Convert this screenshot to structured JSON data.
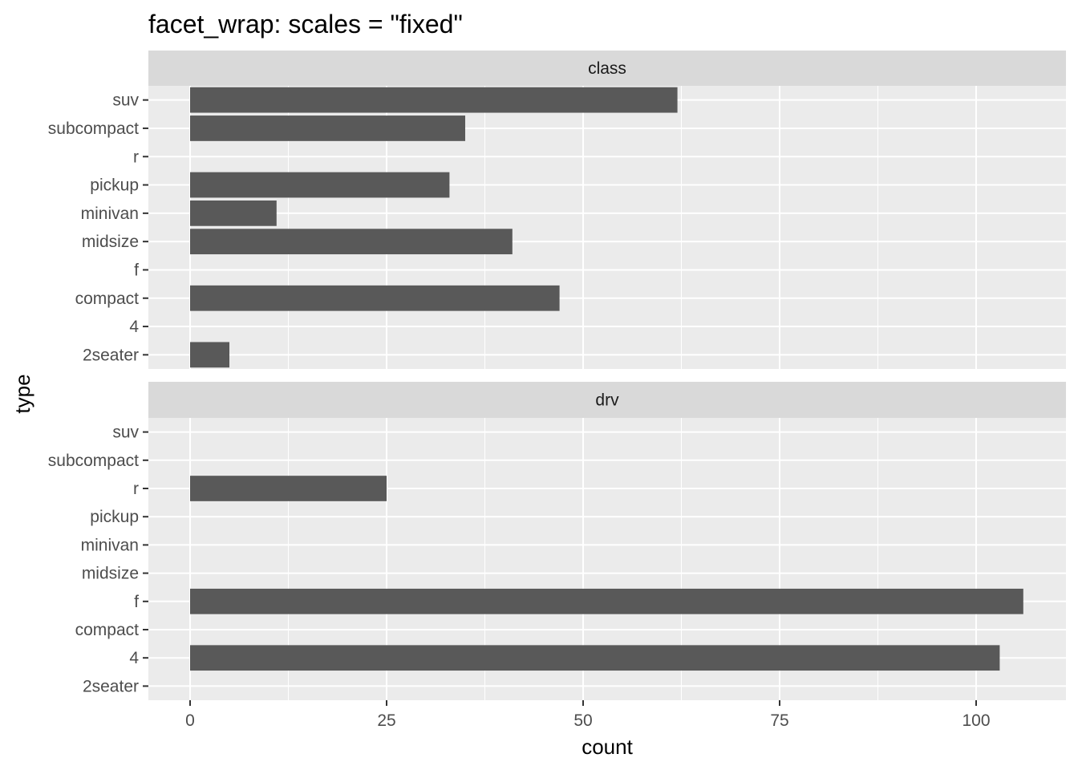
{
  "chart_data": {
    "type": "bar",
    "orientation": "horizontal",
    "title": "facet_wrap: scales = \"fixed\"",
    "xlabel": "count",
    "ylabel": "type",
    "xlim": [
      0,
      108
    ],
    "x_ticks": [
      0,
      25,
      50,
      75,
      100
    ],
    "grid": true,
    "categories": [
      "suv",
      "subcompact",
      "r",
      "pickup",
      "minivan",
      "midsize",
      "f",
      "compact",
      "4",
      "2seater"
    ],
    "panels": [
      {
        "name": "class",
        "values": [
          62,
          35,
          0,
          33,
          11,
          41,
          0,
          47,
          0,
          5
        ]
      },
      {
        "name": "drv",
        "values": [
          0,
          0,
          25,
          0,
          0,
          0,
          106,
          0,
          103,
          0
        ]
      }
    ],
    "colors": {
      "bar": "#595959",
      "panel_background": "#ebebeb",
      "strip_background": "#d9d9d9",
      "grid": "#ffffff"
    }
  }
}
